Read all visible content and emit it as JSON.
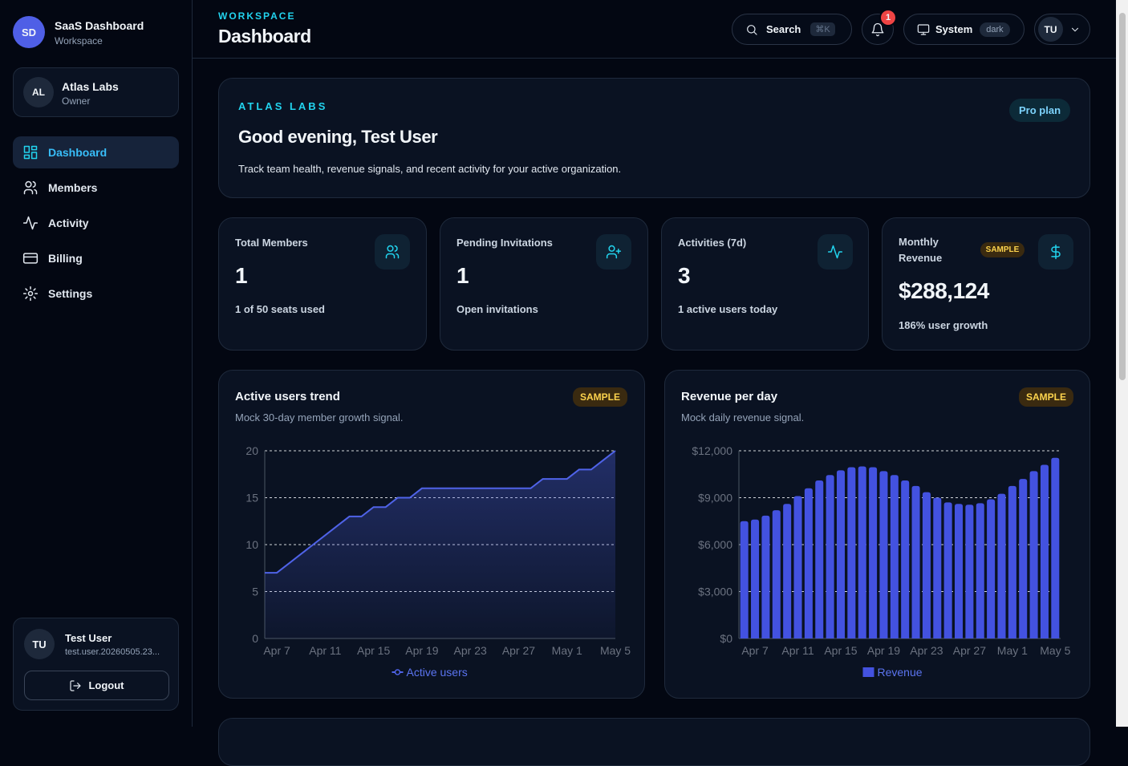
{
  "sidebar": {
    "brand": {
      "initials": "SD",
      "name": "SaaS Dashboard",
      "subtitle": "Workspace"
    },
    "org": {
      "initials": "AL",
      "name": "Atlas Labs",
      "role": "Owner"
    },
    "nav": [
      {
        "label": "Dashboard",
        "active": true
      },
      {
        "label": "Members",
        "active": false
      },
      {
        "label": "Activity",
        "active": false
      },
      {
        "label": "Billing",
        "active": false
      },
      {
        "label": "Settings",
        "active": false
      }
    ],
    "user": {
      "initials": "TU",
      "name": "Test User",
      "email": "test.user.20260505.23...",
      "logout": "Logout"
    }
  },
  "header": {
    "eyebrow": "WORKSPACE",
    "title": "Dashboard",
    "search": "Search",
    "shortcut": "⌘K",
    "notifications": "1",
    "theme": "System",
    "theme_mode": "dark",
    "avatar": "TU"
  },
  "hero": {
    "eyebrow": "ATLAS LABS",
    "title": "Good evening, Test User",
    "description": "Track team health, revenue signals, and recent activity for your active organization.",
    "badge": "Pro plan"
  },
  "stats": [
    {
      "label": "Total Members",
      "value": "1",
      "note": "1 of 50 seats used"
    },
    {
      "label": "Pending Invitations",
      "value": "1",
      "note": "Open invitations"
    },
    {
      "label": "Activities (7d)",
      "value": "3",
      "note": "1 active users today"
    },
    {
      "label": "Monthly Revenue",
      "value": "$288,124",
      "note": "186% user growth",
      "badge": "SAMPLE"
    }
  ],
  "chart_data": [
    {
      "type": "line",
      "title": "Active users trend",
      "subtitle": "Mock 30-day member growth signal.",
      "badge": "SAMPLE",
      "categories": [
        null,
        "Apr 7",
        null,
        null,
        null,
        "Apr 11",
        null,
        null,
        null,
        "Apr 15",
        null,
        null,
        null,
        "Apr 19",
        null,
        null,
        null,
        "Apr 23",
        null,
        null,
        null,
        "Apr 27",
        null,
        null,
        null,
        "May 1",
        null,
        null,
        null,
        "May 5"
      ],
      "series": [
        {
          "name": "Active users",
          "color": "#4f63e8",
          "values": [
            7,
            7,
            8,
            9,
            10,
            11,
            12,
            13,
            13,
            14,
            14,
            15,
            15,
            16,
            16,
            16,
            16,
            16,
            16,
            16,
            16,
            16,
            16,
            17,
            17,
            17,
            18,
            18,
            19,
            20
          ]
        }
      ],
      "ylim": [
        0,
        20
      ],
      "yticks": [
        0,
        5,
        10,
        15,
        20
      ],
      "grid": true,
      "legend": "bottom"
    },
    {
      "type": "bar",
      "title": "Revenue per day",
      "subtitle": "Mock daily revenue signal.",
      "badge": "SAMPLE",
      "categories": [
        null,
        "Apr 7",
        null,
        null,
        null,
        "Apr 11",
        null,
        null,
        null,
        "Apr 15",
        null,
        null,
        null,
        "Apr 19",
        null,
        null,
        null,
        "Apr 23",
        null,
        null,
        null,
        "Apr 27",
        null,
        null,
        null,
        "May 1",
        null,
        null,
        null,
        "May 5"
      ],
      "series": [
        {
          "name": "Revenue",
          "color": "#4352e0",
          "values": [
            7500,
            7600,
            7850,
            8200,
            8600,
            9100,
            9600,
            10100,
            10450,
            10750,
            10950,
            11000,
            10950,
            10700,
            10450,
            10100,
            9750,
            9350,
            9000,
            8700,
            8600,
            8550,
            8650,
            8900,
            9250,
            9750,
            10200,
            10700,
            11100,
            11550
          ]
        }
      ],
      "ylim": [
        0,
        12000
      ],
      "yticks": [
        {
          "value": 0,
          "label": "$0"
        },
        {
          "value": 3000,
          "label": "$3,000"
        },
        {
          "value": 6000,
          "label": "$6,000"
        },
        {
          "value": 9000,
          "label": "$9,000"
        },
        {
          "value": 12000,
          "label": "$12,000"
        }
      ],
      "grid": true,
      "legend": "bottom"
    }
  ]
}
